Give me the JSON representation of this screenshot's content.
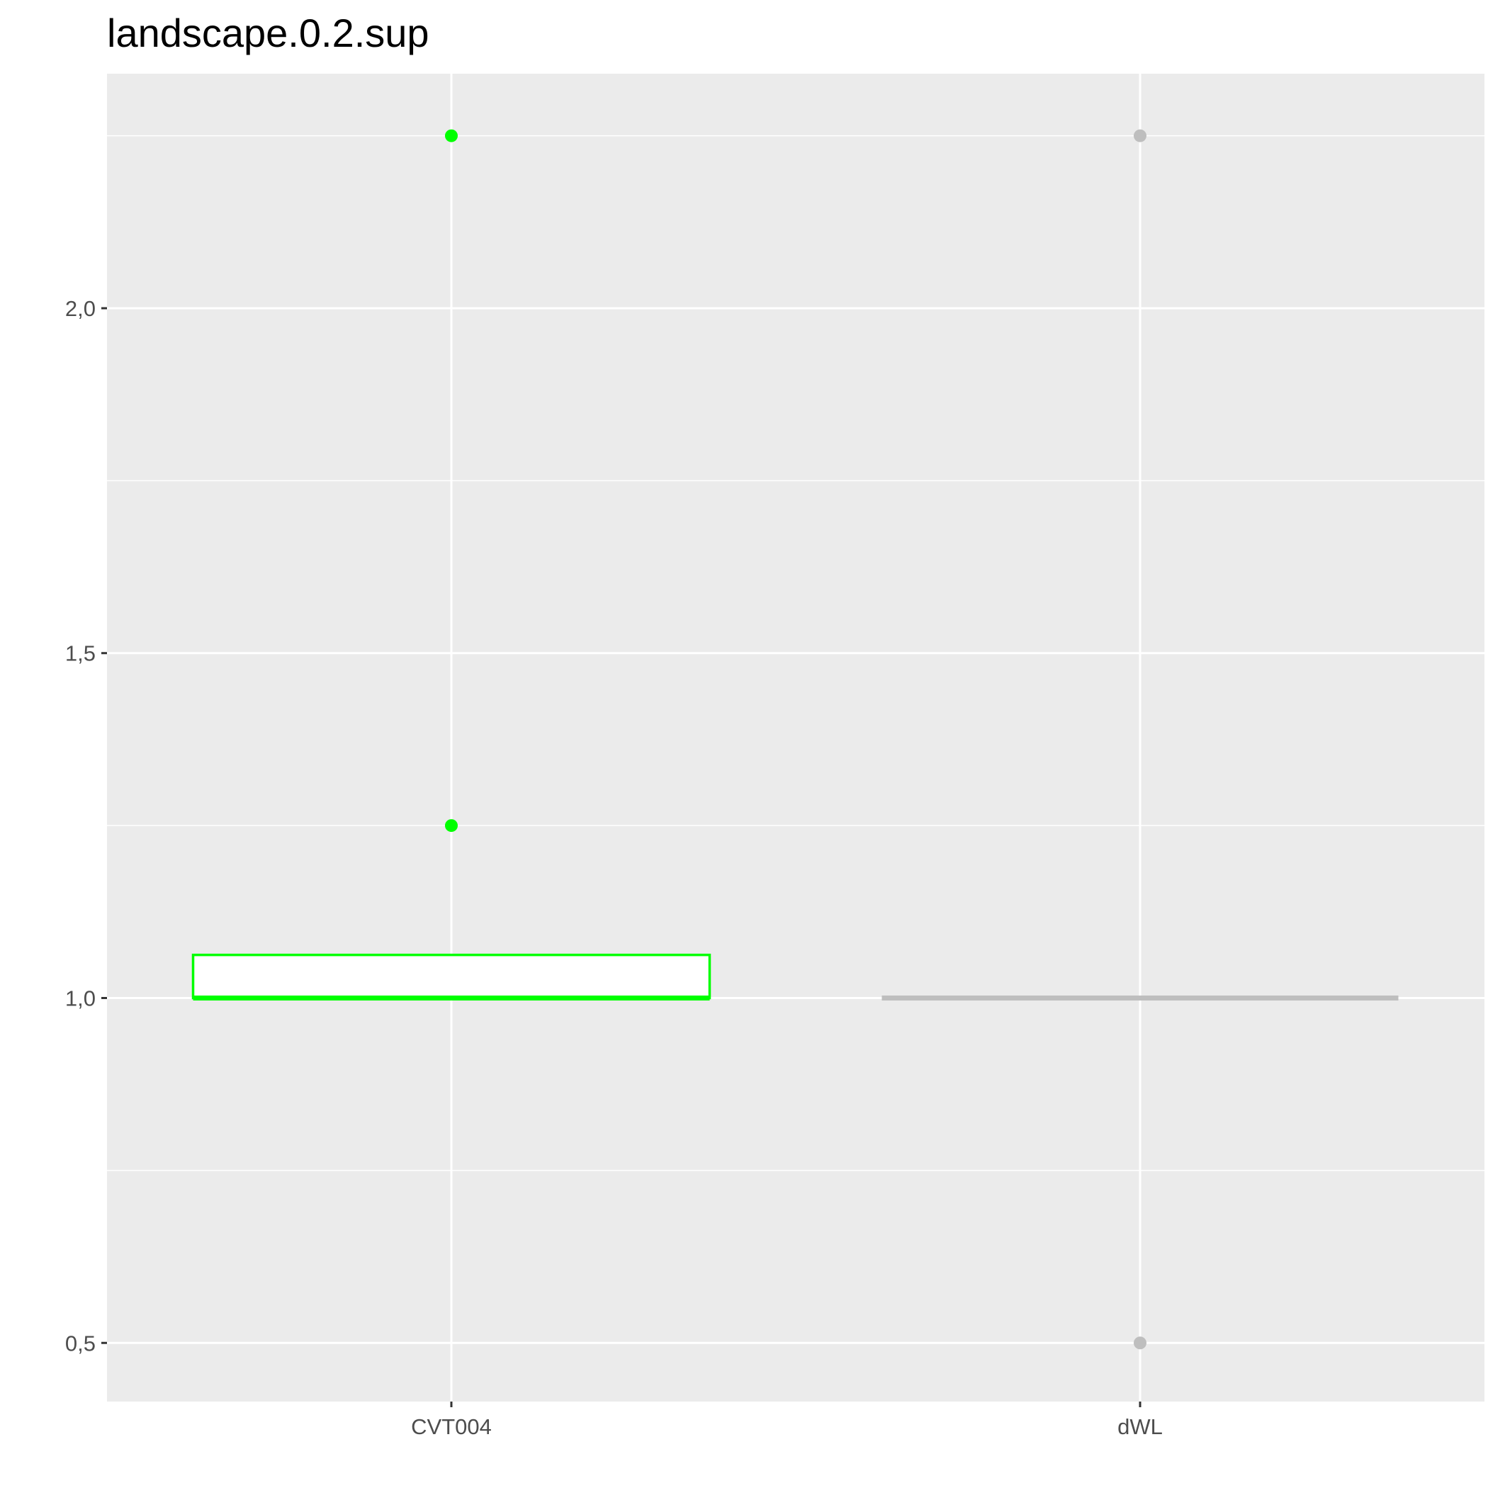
{
  "chart_data": {
    "type": "boxplot",
    "title": "landscape.0.2.sup",
    "xlabel": "",
    "ylabel": "",
    "categories": [
      "CVT004",
      "dWL"
    ],
    "ylim": [
      0.415,
      2.34
    ],
    "yticks": [
      {
        "value": 0.5,
        "label": "0,5"
      },
      {
        "value": 1.0,
        "label": "1,0"
      },
      {
        "value": 1.5,
        "label": "1,5"
      },
      {
        "value": 2.0,
        "label": "2,0"
      }
    ],
    "grid": true,
    "legend": "none",
    "background": "#ebebeb",
    "series": [
      {
        "category": "CVT004",
        "color": "#00ff00",
        "fill": "#ffffff",
        "min": 1.0,
        "q1": 1.0,
        "median": 1.0,
        "q3": 1.0625,
        "max": 1.0625,
        "outliers": [
          1.25,
          2.25
        ]
      },
      {
        "category": "dWL",
        "color": "#bebebe",
        "fill": "#ffffff",
        "min": 1.0,
        "q1": 1.0,
        "median": 1.0,
        "q3": 1.0,
        "max": 1.0,
        "outliers": [
          0.5,
          2.25
        ]
      }
    ]
  }
}
